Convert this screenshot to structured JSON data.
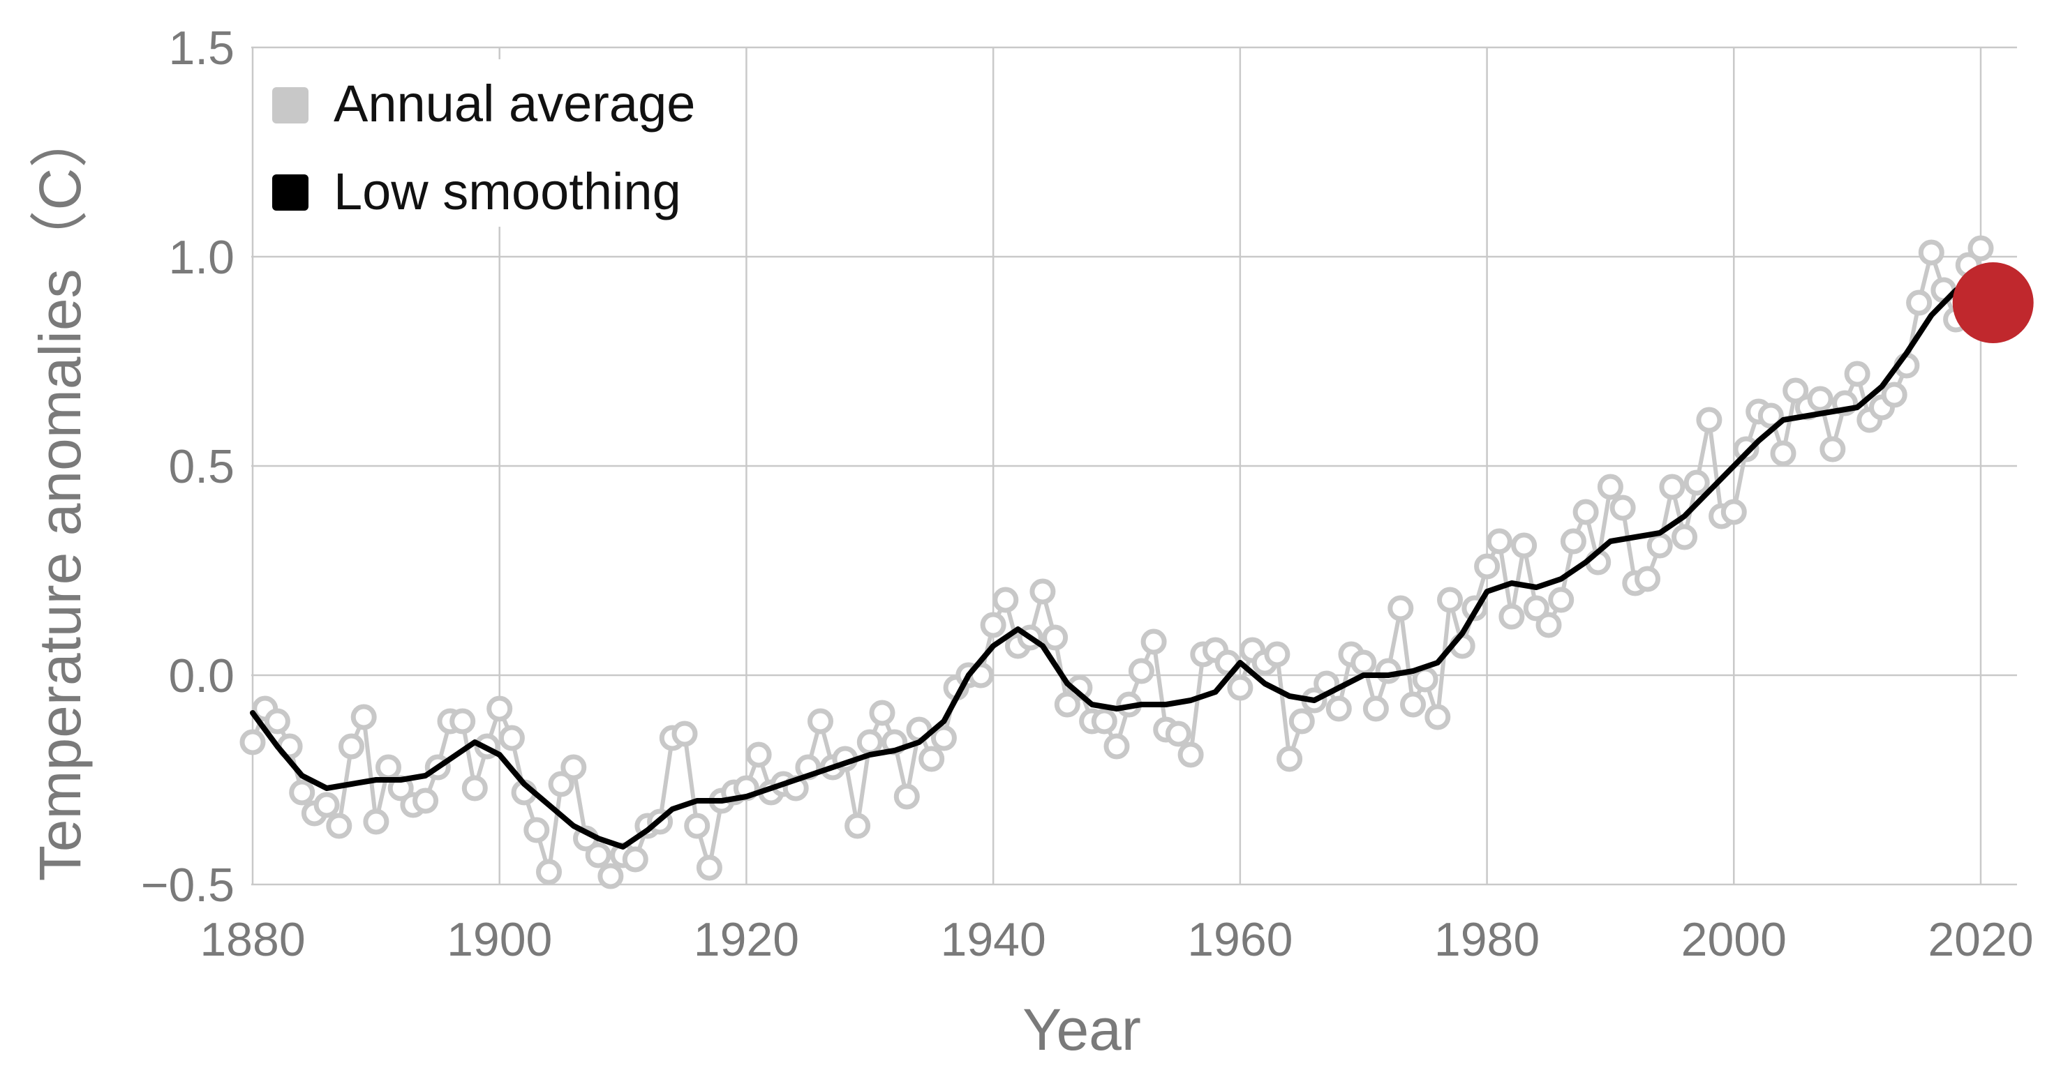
{
  "chart_data": {
    "type": "line",
    "title": "",
    "xlabel": "Year",
    "ylabel": "Temperature anomalies（C）",
    "xlim": [
      1880,
      2022
    ],
    "ylim": [
      -0.5,
      1.5
    ],
    "x_ticks": [
      1880,
      1900,
      1920,
      1940,
      1960,
      1980,
      2000,
      2020
    ],
    "x_tick_labels": [
      "1880",
      "1900",
      "1920",
      "1940",
      "1960",
      "1980",
      "2000",
      "2020"
    ],
    "y_ticks": [
      1.5,
      1.0,
      0.5,
      0.0,
      -0.5
    ],
    "y_tick_labels": [
      "1.5",
      "1.0",
      "0.5",
      "0.0",
      "−0.5"
    ],
    "grid": true,
    "legend": {
      "placement": "top-left",
      "entries": [
        {
          "label": "Annual average",
          "color": "#c8c8c8"
        },
        {
          "label": "Low smoothing",
          "color": "#000000"
        }
      ]
    },
    "series": [
      {
        "name": "Annual average",
        "color": "#c8c8c8",
        "style": "line-with-hollow-markers",
        "x": [
          1880,
          1881,
          1882,
          1883,
          1884,
          1885,
          1886,
          1887,
          1888,
          1889,
          1890,
          1891,
          1892,
          1893,
          1894,
          1895,
          1896,
          1897,
          1898,
          1899,
          1900,
          1901,
          1902,
          1903,
          1904,
          1905,
          1906,
          1907,
          1908,
          1909,
          1910,
          1911,
          1912,
          1913,
          1914,
          1915,
          1916,
          1917,
          1918,
          1919,
          1920,
          1921,
          1922,
          1923,
          1924,
          1925,
          1926,
          1927,
          1928,
          1929,
          1930,
          1931,
          1932,
          1933,
          1934,
          1935,
          1936,
          1937,
          1938,
          1939,
          1940,
          1941,
          1942,
          1943,
          1944,
          1945,
          1946,
          1947,
          1948,
          1949,
          1950,
          1951,
          1952,
          1953,
          1954,
          1955,
          1956,
          1957,
          1958,
          1959,
          1960,
          1961,
          1962,
          1963,
          1964,
          1965,
          1966,
          1967,
          1968,
          1969,
          1970,
          1971,
          1972,
          1973,
          1974,
          1975,
          1976,
          1977,
          1978,
          1979,
          1980,
          1981,
          1982,
          1983,
          1984,
          1985,
          1986,
          1987,
          1988,
          1989,
          1990,
          1991,
          1992,
          1993,
          1994,
          1995,
          1996,
          1997,
          1998,
          1999,
          2000,
          2001,
          2002,
          2003,
          2004,
          2005,
          2006,
          2007,
          2008,
          2009,
          2010,
          2011,
          2012,
          2013,
          2014,
          2015,
          2016,
          2017,
          2018,
          2019,
          2020
        ],
        "values": [
          -0.16,
          -0.08,
          -0.11,
          -0.17,
          -0.28,
          -0.33,
          -0.31,
          -0.36,
          -0.17,
          -0.1,
          -0.35,
          -0.22,
          -0.27,
          -0.31,
          -0.3,
          -0.22,
          -0.11,
          -0.11,
          -0.27,
          -0.17,
          -0.08,
          -0.15,
          -0.28,
          -0.37,
          -0.47,
          -0.26,
          -0.22,
          -0.39,
          -0.43,
          -0.48,
          -0.43,
          -0.44,
          -0.36,
          -0.35,
          -0.15,
          -0.14,
          -0.36,
          -0.46,
          -0.3,
          -0.28,
          -0.27,
          -0.19,
          -0.28,
          -0.26,
          -0.27,
          -0.22,
          -0.11,
          -0.22,
          -0.2,
          -0.36,
          -0.16,
          -0.09,
          -0.16,
          -0.29,
          -0.13,
          -0.2,
          -0.15,
          -0.03,
          0.0,
          0.0,
          0.12,
          0.18,
          0.07,
          0.09,
          0.2,
          0.09,
          -0.07,
          -0.03,
          -0.11,
          -0.11,
          -0.17,
          -0.07,
          0.01,
          0.08,
          -0.13,
          -0.14,
          -0.19,
          0.05,
          0.06,
          0.03,
          -0.03,
          0.06,
          0.03,
          0.05,
          -0.2,
          -0.11,
          -0.06,
          -0.02,
          -0.08,
          0.05,
          0.03,
          -0.08,
          0.01,
          0.16,
          -0.07,
          -0.01,
          -0.1,
          0.18,
          0.07,
          0.16,
          0.26,
          0.32,
          0.14,
          0.31,
          0.16,
          0.12,
          0.18,
          0.32,
          0.39,
          0.27,
          0.45,
          0.4,
          0.22,
          0.23,
          0.31,
          0.45,
          0.33,
          0.46,
          0.61,
          0.38,
          0.39,
          0.54,
          0.63,
          0.62,
          0.53,
          0.68,
          0.64,
          0.66,
          0.54,
          0.65,
          0.72,
          0.61,
          0.64,
          0.67,
          0.74,
          0.89,
          1.01,
          0.92,
          0.85,
          0.98,
          1.02
        ]
      },
      {
        "name": "Low smoothing",
        "color": "#000000",
        "style": "line",
        "x": [
          1880,
          1882,
          1884,
          1886,
          1888,
          1890,
          1892,
          1894,
          1896,
          1898,
          1900,
          1902,
          1904,
          1906,
          1908,
          1910,
          1912,
          1914,
          1916,
          1918,
          1920,
          1922,
          1924,
          1926,
          1928,
          1930,
          1932,
          1934,
          1936,
          1938,
          1940,
          1942,
          1944,
          1946,
          1948,
          1950,
          1952,
          1954,
          1956,
          1958,
          1960,
          1962,
          1964,
          1966,
          1968,
          1970,
          1972,
          1974,
          1976,
          1978,
          1980,
          1982,
          1984,
          1986,
          1988,
          1990,
          1992,
          1994,
          1996,
          1998,
          2000,
          2002,
          2004,
          2006,
          2008,
          2010,
          2012,
          2014,
          2016,
          2018
        ],
        "values": [
          -0.09,
          -0.17,
          -0.24,
          -0.27,
          -0.26,
          -0.25,
          -0.25,
          -0.24,
          -0.2,
          -0.16,
          -0.19,
          -0.26,
          -0.31,
          -0.36,
          -0.39,
          -0.41,
          -0.37,
          -0.32,
          -0.3,
          -0.3,
          -0.29,
          -0.27,
          -0.25,
          -0.23,
          -0.21,
          -0.19,
          -0.18,
          -0.16,
          -0.11,
          0.0,
          0.07,
          0.11,
          0.07,
          -0.02,
          -0.07,
          -0.08,
          -0.07,
          -0.07,
          -0.06,
          -0.04,
          0.03,
          -0.02,
          -0.05,
          -0.06,
          -0.03,
          0.0,
          0.0,
          0.01,
          0.03,
          0.1,
          0.2,
          0.22,
          0.21,
          0.23,
          0.27,
          0.32,
          0.33,
          0.34,
          0.38,
          0.44,
          0.5,
          0.56,
          0.61,
          0.62,
          0.63,
          0.64,
          0.69,
          0.77,
          0.86,
          0.92
        ]
      }
    ],
    "highlight": {
      "year": 2021,
      "value": 0.89,
      "color": "#c0282d"
    }
  }
}
